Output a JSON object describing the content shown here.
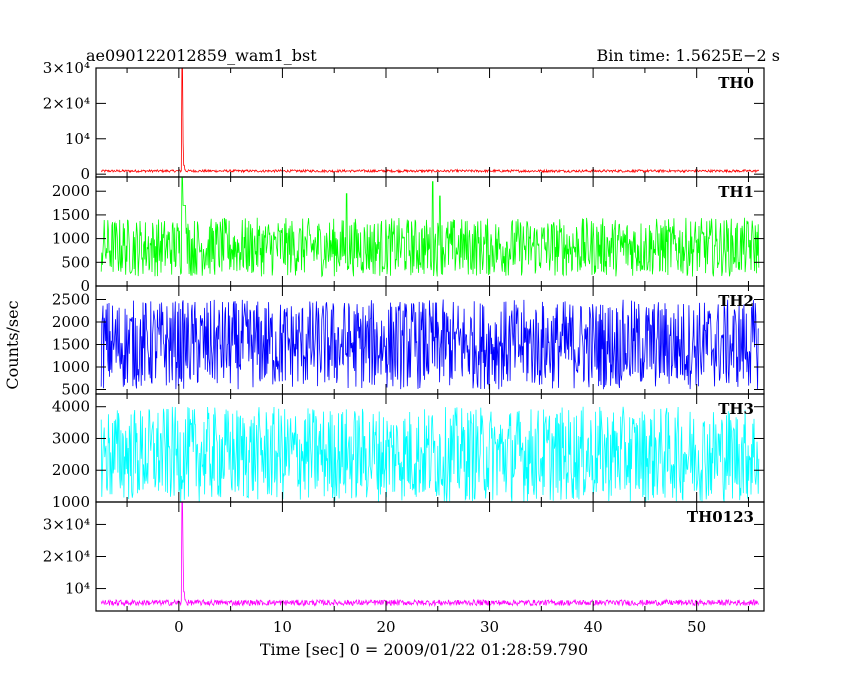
{
  "chart_data": {
    "type": "line",
    "title": "ae090122012859_wam1_bst",
    "subtitle": "Bin time: 1.5625E−2 s",
    "xlabel": "Time [sec] 0 = 2009/01/22 01:28:59.790",
    "ylabel": "Counts/sec",
    "xlim": [
      -8,
      56.5
    ],
    "x_ticks": [
      0,
      10,
      20,
      30,
      40,
      50
    ],
    "x_tick_labels": [
      "0",
      "10",
      "20",
      "30",
      "40",
      "50"
    ],
    "grid": false,
    "panels": [
      {
        "name": "TH0",
        "color": "#ff0000",
        "ylim": [
          -800,
          30000
        ],
        "y_ticks": [
          0,
          10000,
          20000,
          30000
        ],
        "y_tick_labels": [
          "0",
          "10⁴",
          "2×10⁴",
          "3×10⁴"
        ],
        "x_range": [
          -7.5,
          56
        ],
        "baseline": 900,
        "noise": 350,
        "spike": {
          "x": 0.3,
          "peak": 30000,
          "decay": [
            9000,
            2500,
            1200
          ]
        },
        "bumps": []
      },
      {
        "name": "TH1",
        "color": "#00ff00",
        "ylim": [
          0,
          2300
        ],
        "y_ticks": [
          0,
          500,
          1000,
          1500,
          2000
        ],
        "y_tick_labels": [
          "0",
          "500",
          "1000",
          "1500",
          "2000"
        ],
        "x_range": [
          -7.5,
          56
        ],
        "baseline": 820,
        "noise": 620,
        "spike": {
          "x": 0.3,
          "peak": 2300,
          "decay": [
            1700
          ]
        },
        "bumps": [
          {
            "x": 24.5,
            "peak": 2200
          },
          {
            "x": 16.2,
            "peak": 1950
          },
          {
            "x": 25.2,
            "peak": 1900
          }
        ]
      },
      {
        "name": "TH2",
        "color": "#0000ff",
        "ylim": [
          400,
          2800
        ],
        "y_ticks": [
          500,
          1000,
          1500,
          2000,
          2500
        ],
        "y_tick_labels": [
          "500",
          "1000",
          "1500",
          "2000",
          "2500"
        ],
        "x_range": [
          -7.5,
          56
        ],
        "baseline": 1500,
        "noise": 1000,
        "spike": null,
        "bumps": []
      },
      {
        "name": "TH3",
        "color": "#00ffff",
        "ylim": [
          1000,
          4400
        ],
        "y_ticks": [
          1000,
          2000,
          3000,
          4000
        ],
        "y_tick_labels": [
          "1000",
          "2000",
          "3000",
          "4000"
        ],
        "x_range": [
          -7.5,
          56
        ],
        "baseline": 2500,
        "noise": 1500,
        "spike": null,
        "bumps": []
      },
      {
        "name": "TH0123",
        "color": "#ff00ff",
        "ylim": [
          3000,
          37000
        ],
        "y_ticks": [
          10000,
          20000,
          30000
        ],
        "y_tick_labels": [
          "10⁴",
          "2×10⁴",
          "3×10⁴"
        ],
        "x_range": [
          -7.5,
          56
        ],
        "baseline": 5600,
        "noise": 900,
        "spike": {
          "x": 0.3,
          "peak": 37000,
          "decay": [
            20000,
            9000,
            6500
          ]
        },
        "bumps": []
      }
    ]
  }
}
